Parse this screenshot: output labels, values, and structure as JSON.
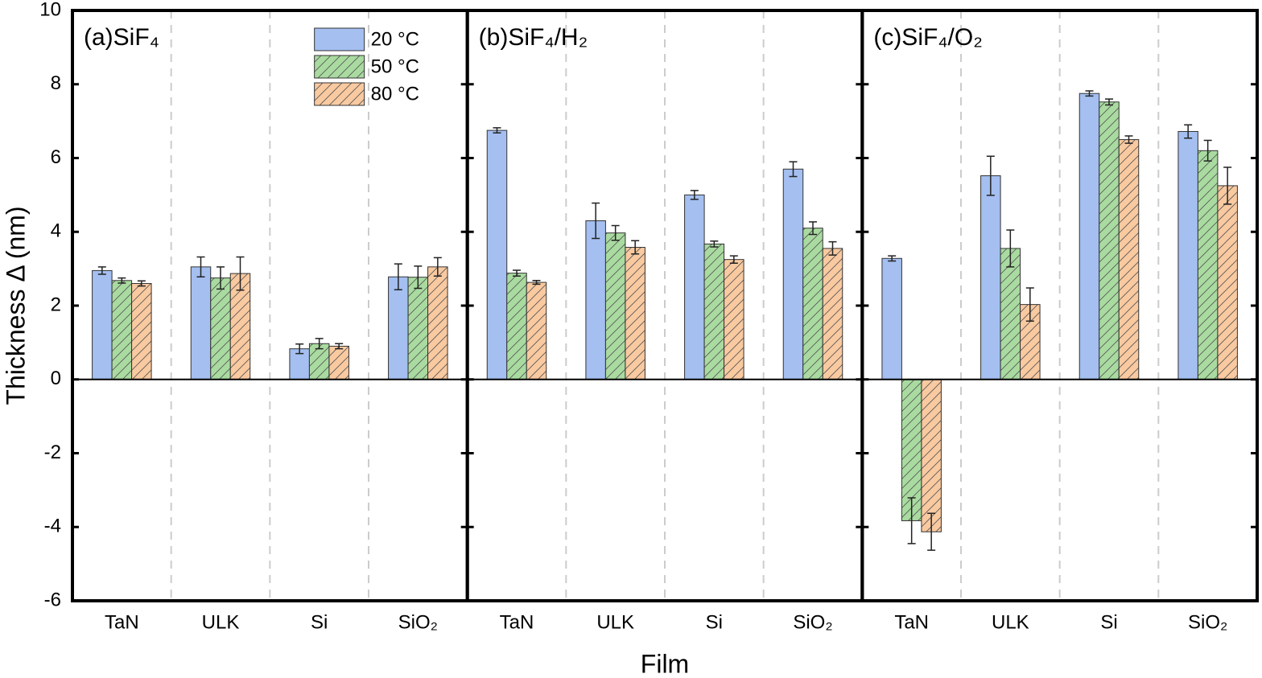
{
  "chart_data": [
    {
      "type": "bar",
      "title": "(a)SiF₄",
      "y_label": "Thickness Δ (nm)",
      "legend": "upper right",
      "categories": [
        "TaN",
        "ULK",
        "Si",
        "SiO₂"
      ],
      "ylim": [
        -6,
        10
      ],
      "yticks": [
        -6,
        -4,
        -2,
        0,
        2,
        4,
        6,
        8,
        10
      ],
      "series": [
        {
          "name": "20 °C",
          "color": "#a4bff0",
          "hatch": false,
          "values": [
            2.95,
            3.05,
            0.83,
            2.78
          ],
          "errors": [
            0.1,
            0.27,
            0.13,
            0.35
          ]
        },
        {
          "name": "50 °C",
          "color": "#a9dba0",
          "hatch": true,
          "values": [
            2.68,
            2.75,
            0.97,
            2.77
          ],
          "errors": [
            0.07,
            0.3,
            0.14,
            0.3
          ]
        },
        {
          "name": "80 °C",
          "color": "#f9c9a0",
          "hatch": true,
          "values": [
            2.6,
            2.87,
            0.9,
            3.05
          ],
          "errors": [
            0.07,
            0.45,
            0.07,
            0.25
          ]
        }
      ]
    },
    {
      "type": "bar",
      "title": "(b)SiF₄/H₂",
      "x_label": "Film",
      "categories": [
        "TaN",
        "ULK",
        "Si",
        "SiO₂"
      ],
      "ylim": [
        -6,
        10
      ],
      "yticks": [
        -6,
        -4,
        -2,
        0,
        2,
        4,
        6,
        8,
        10
      ],
      "series": [
        {
          "color": "#a4bff0",
          "hatch": false,
          "values": [
            6.75,
            4.3,
            5.0,
            5.7
          ],
          "errors": [
            0.07,
            0.48,
            0.12,
            0.2
          ]
        },
        {
          "color": "#a9dba0",
          "hatch": true,
          "values": [
            2.88,
            3.97,
            3.67,
            4.1
          ],
          "errors": [
            0.08,
            0.2,
            0.08,
            0.17
          ]
        },
        {
          "color": "#f9c9a0",
          "hatch": true,
          "values": [
            2.63,
            3.58,
            3.25,
            3.55
          ],
          "errors": [
            0.05,
            0.18,
            0.1,
            0.18
          ]
        }
      ]
    },
    {
      "type": "bar",
      "title": "(c)SiF₄/O₂",
      "categories": [
        "TaN",
        "ULK",
        "Si",
        "SiO₂"
      ],
      "ylim": [
        -6,
        10
      ],
      "yticks": [
        -6,
        -4,
        -2,
        0,
        2,
        4,
        6,
        8,
        10
      ],
      "series": [
        {
          "color": "#a4bff0",
          "hatch": false,
          "values": [
            3.28,
            5.52,
            7.75,
            6.72
          ],
          "errors": [
            0.07,
            0.53,
            0.07,
            0.18
          ]
        },
        {
          "color": "#a9dba0",
          "hatch": true,
          "values": [
            -3.83,
            3.55,
            7.52,
            6.2
          ],
          "errors": [
            0.62,
            0.5,
            0.08,
            0.28
          ]
        },
        {
          "color": "#f9c9a0",
          "hatch": true,
          "values": [
            -4.13,
            2.03,
            6.5,
            5.25
          ],
          "errors": [
            0.5,
            0.45,
            0.1,
            0.5
          ]
        }
      ]
    }
  ]
}
